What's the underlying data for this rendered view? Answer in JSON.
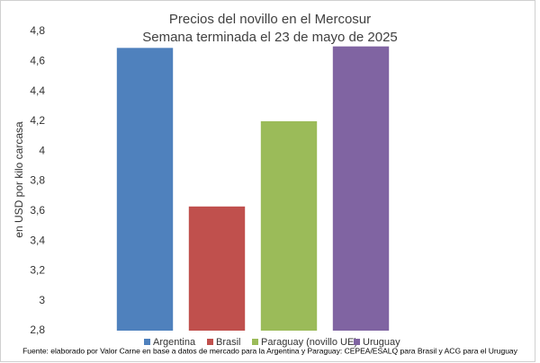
{
  "chart_data": {
    "type": "bar",
    "title": "Precios del novillo en el Mercosur",
    "subtitle": "Semana terminada el 23 de mayo de 2025",
    "y_label": "en USD por kilo carcasa",
    "source": "Fuente: elaborado por Valor Carne en base a datos de mercado para la Argentina y Paraguay: CEPEA/ESALQ para Brasil y ACG para el Uruguay",
    "categories": [
      "Argentina",
      "Brasil",
      "Paraguay (novillo UE)",
      "Uruguay"
    ],
    "values": [
      4.69,
      3.63,
      4.2,
      4.7
    ],
    "colors": [
      "#4f81bd",
      "#c0504d",
      "#9bbb59",
      "#8064a2"
    ],
    "ylim": [
      2.8,
      4.8
    ],
    "yticks": [
      {
        "value": 2.8,
        "label": "2,8"
      },
      3,
      {
        "value": 3.2,
        "label": "3,2"
      },
      {
        "value": 3.4,
        "label": "3,4"
      },
      {
        "value": 3.6,
        "label": "3,6"
      },
      {
        "value": 3.8,
        "label": "3,8"
      },
      4,
      {
        "value": 4.2,
        "label": "4,2"
      },
      {
        "value": 4.4,
        "label": "4,4"
      },
      {
        "value": 4.6,
        "label": "4,6"
      },
      {
        "value": 4.8,
        "label": "4,8"
      }
    ],
    "grid": false
  }
}
